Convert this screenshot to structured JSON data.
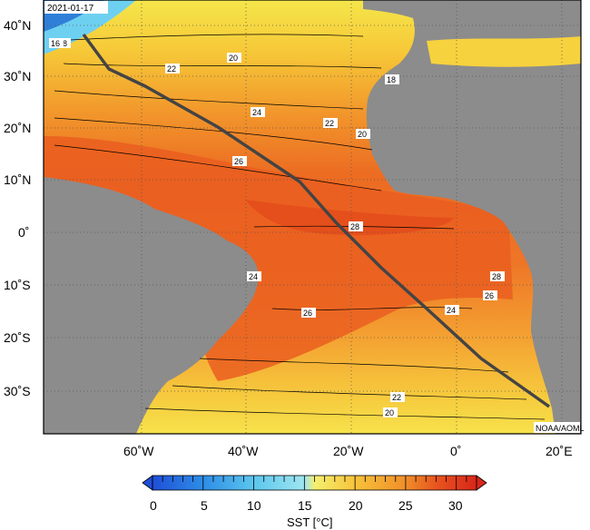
{
  "date_label": "2021-01-17",
  "credit": "NOAA/AOML",
  "colorbar": {
    "title": "SST [°C]",
    "ticks": [
      "0",
      "5",
      "10",
      "15",
      "20",
      "25",
      "30"
    ],
    "stops": [
      {
        "v": 0,
        "color": "#1f4fd8"
      },
      {
        "v": 5,
        "color": "#2e8de6"
      },
      {
        "v": 10,
        "color": "#5cc6ee"
      },
      {
        "v": 15,
        "color": "#9fe6f0"
      },
      {
        "v": 16,
        "color": "#f5f070"
      },
      {
        "v": 20,
        "color": "#f7c33a"
      },
      {
        "v": 25,
        "color": "#f08f2a"
      },
      {
        "v": 28,
        "color": "#e8551f"
      },
      {
        "v": 32,
        "color": "#d8261a"
      }
    ]
  },
  "axes": {
    "lon_labels": [
      "60˚W",
      "40˚W",
      "20˚W",
      "0˚",
      "20˚E"
    ],
    "lat_labels": [
      "40˚N",
      "30˚N",
      "20˚N",
      "10˚N",
      "0˚",
      "10˚S",
      "20˚S",
      "30˚S"
    ]
  },
  "contour_labels": [
    "18",
    "16",
    "20",
    "22",
    "18",
    "24",
    "22",
    "20",
    "26",
    "28",
    "28",
    "26",
    "26",
    "24",
    "24",
    "22",
    "20"
  ],
  "colors": {
    "land": "#8c8c8c",
    "track": "#444444"
  }
}
